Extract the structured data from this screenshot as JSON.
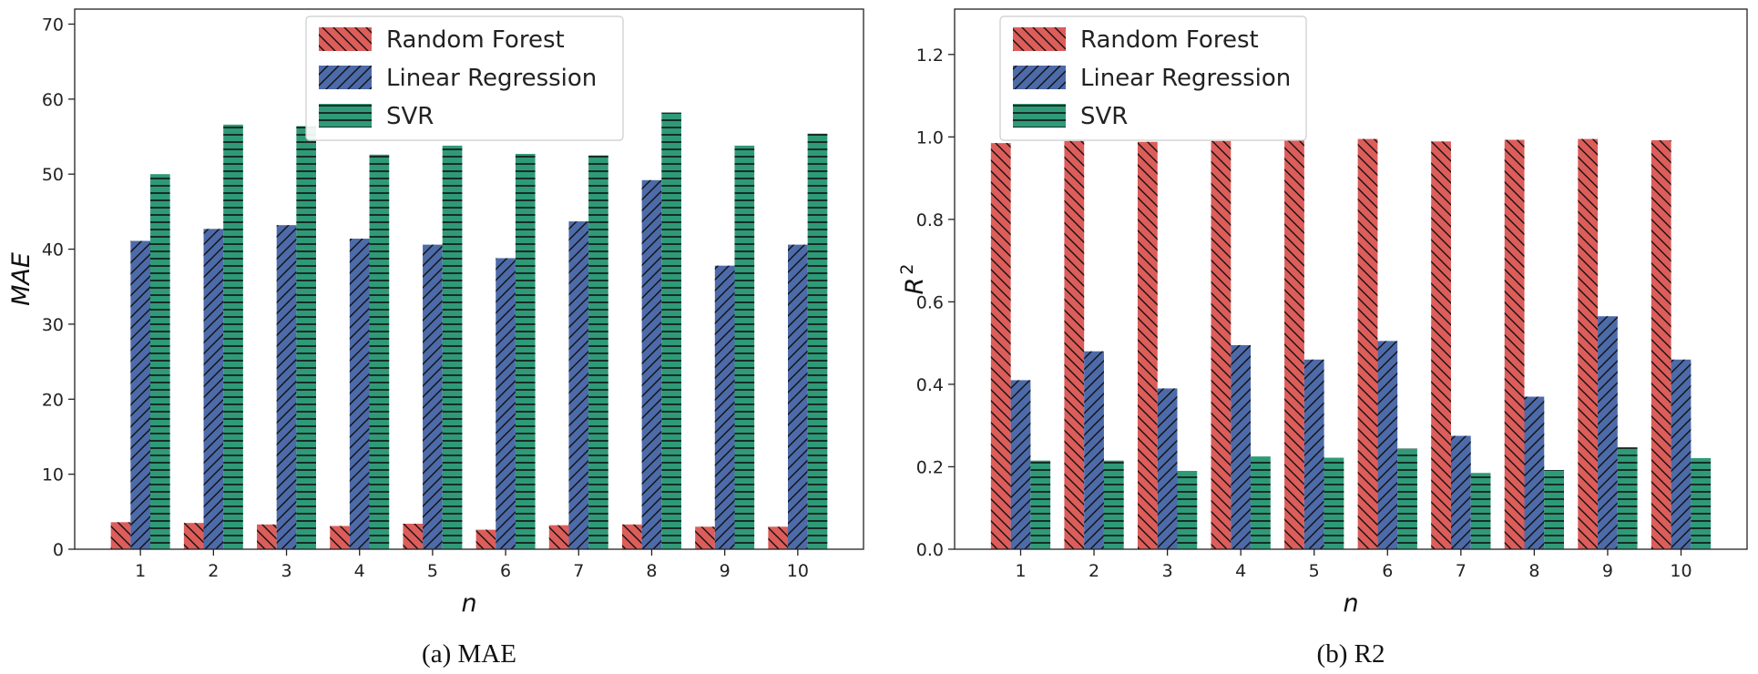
{
  "colors": {
    "Random Forest": "#dc5d5a",
    "Linear Regression": "#4d6aa9",
    "SVR": "#2f9a78"
  },
  "chart_data": [
    {
      "type": "bar",
      "id": "mae",
      "title": "",
      "caption": "(a) MAE",
      "xlabel": "n",
      "ylabel": "MAE",
      "categories": [
        "1",
        "2",
        "3",
        "4",
        "5",
        "6",
        "7",
        "8",
        "9",
        "10"
      ],
      "ylim": [
        0,
        72
      ],
      "yticks": [
        0,
        10,
        20,
        30,
        40,
        50,
        60,
        70
      ],
      "ytick_labels": [
        "0",
        "10",
        "20",
        "30",
        "40",
        "50",
        "60",
        "70"
      ],
      "legend_position": "top-center",
      "series": [
        {
          "name": "Random Forest",
          "hatch": "backslash",
          "values": [
            3.6,
            3.5,
            3.3,
            3.1,
            3.4,
            2.6,
            3.2,
            3.3,
            3.0,
            3.0
          ]
        },
        {
          "name": "Linear Regression",
          "hatch": "slash",
          "values": [
            41.1,
            42.7,
            43.2,
            41.4,
            40.6,
            38.8,
            43.7,
            49.2,
            37.8,
            40.6
          ]
        },
        {
          "name": "SVR",
          "hatch": "horizontal",
          "values": [
            50.0,
            56.6,
            56.4,
            52.6,
            53.8,
            52.7,
            52.5,
            58.2,
            53.8,
            55.4
          ]
        }
      ]
    },
    {
      "type": "bar",
      "id": "r2",
      "title": "",
      "caption": "(b) R2",
      "xlabel": "n",
      "ylabel": "R",
      "ylabel_superscript": "2",
      "categories": [
        "1",
        "2",
        "3",
        "4",
        "5",
        "6",
        "7",
        "8",
        "9",
        "10"
      ],
      "ylim": [
        0,
        1.31
      ],
      "yticks": [
        0,
        0.2,
        0.4,
        0.6,
        0.8,
        1.0,
        1.2
      ],
      "ytick_labels": [
        "0.0",
        "0.2",
        "0.4",
        "0.6",
        "0.8",
        "1.0",
        "1.2"
      ],
      "legend_position": "top-left",
      "series": [
        {
          "name": "Random Forest",
          "hatch": "backslash",
          "values": [
            0.985,
            0.99,
            0.988,
            0.99,
            0.993,
            0.995,
            0.989,
            0.993,
            0.995,
            0.992
          ]
        },
        {
          "name": "Linear Regression",
          "hatch": "slash",
          "values": [
            0.41,
            0.48,
            0.39,
            0.495,
            0.46,
            0.505,
            0.275,
            0.37,
            0.565,
            0.46
          ]
        },
        {
          "name": "SVR",
          "hatch": "horizontal",
          "values": [
            0.215,
            0.215,
            0.19,
            0.225,
            0.222,
            0.244,
            0.185,
            0.192,
            0.247,
            0.221
          ]
        }
      ]
    }
  ]
}
